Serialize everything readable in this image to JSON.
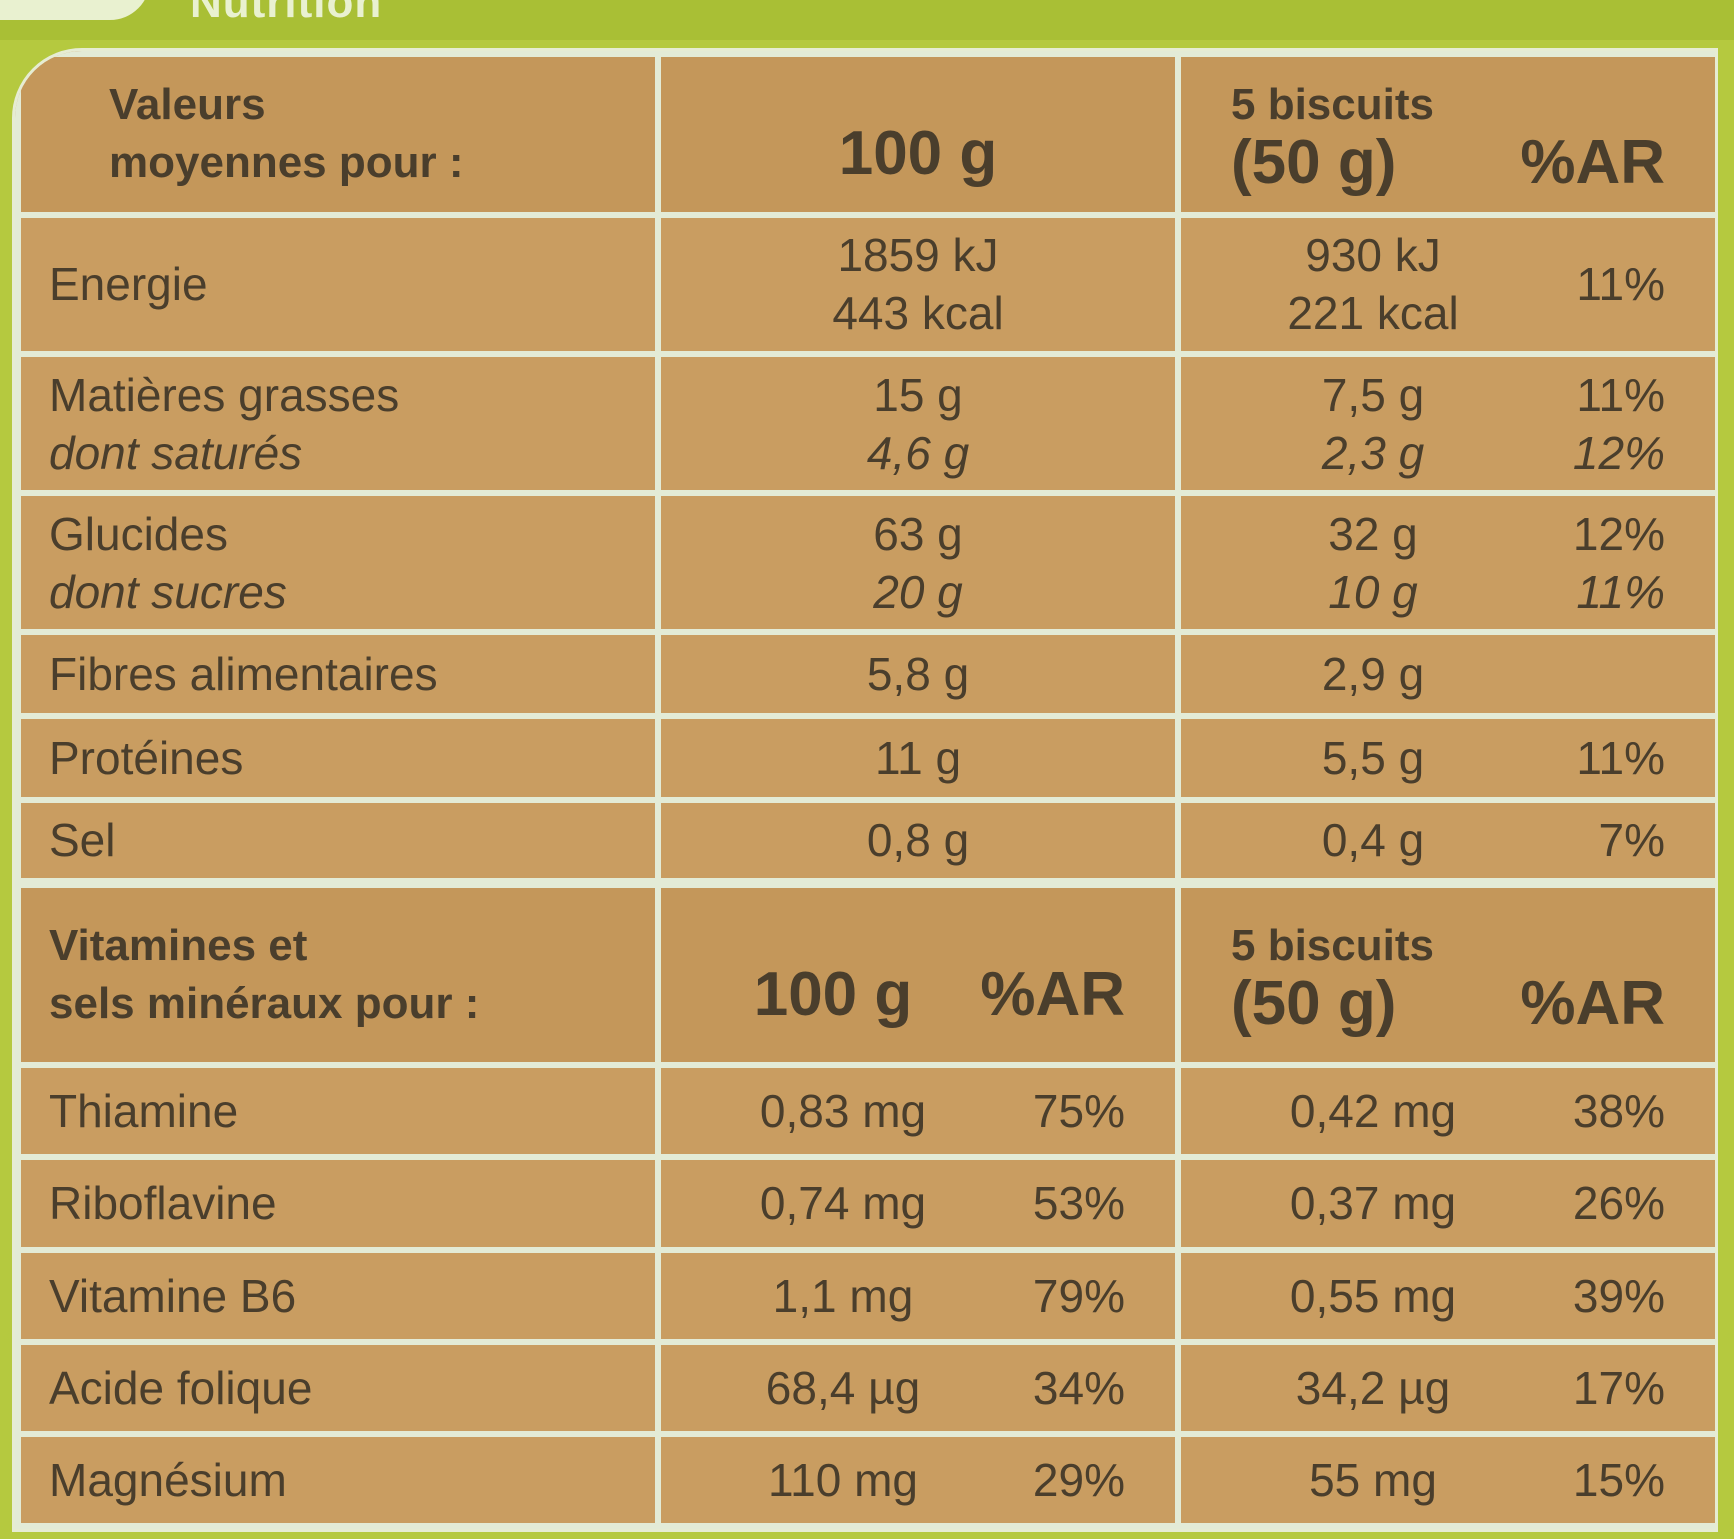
{
  "top_title": "Nutrition",
  "table1": {
    "header": {
      "label_line1": "Valeurs",
      "label_line2": "moyennes pour :",
      "col1": "100 g",
      "col2_line1": "5 biscuits",
      "col2_line2": "(50 g)",
      "col3": "%AR"
    },
    "rows": [
      {
        "label": "Energie",
        "sub": "",
        "v100": "1859 kJ",
        "v100b": "443 kcal",
        "v50": "930 kJ",
        "v50b": "221 kcal",
        "ar": "11%",
        "arb": ""
      },
      {
        "label": "Matières grasses",
        "sub": "dont saturés",
        "v100": "15 g",
        "v100b": "4,6 g",
        "v50": "7,5 g",
        "v50b": "2,3 g",
        "ar": "11%",
        "arb": "12%"
      },
      {
        "label": "Glucides",
        "sub": "dont sucres",
        "v100": "63 g",
        "v100b": "20 g",
        "v50": "32 g",
        "v50b": "10 g",
        "ar": "12%",
        "arb": "11%"
      },
      {
        "label": "Fibres alimentaires",
        "v100": "5,8 g",
        "v50": "2,9 g",
        "ar": ""
      },
      {
        "label": "Protéines",
        "v100": "11 g",
        "v50": "5,5 g",
        "ar": "11%"
      },
      {
        "label": "Sel",
        "v100": "0,8 g",
        "v50": "0,4 g",
        "ar": "7%"
      }
    ]
  },
  "table2": {
    "header": {
      "label_line1": "Vitamines et",
      "label_line2": "sels minéraux pour :",
      "col1": "100 g",
      "col1_ar": "%AR",
      "col2_line1": "5 biscuits",
      "col2_line2": "(50 g)",
      "col2_ar": "%AR"
    },
    "rows": [
      {
        "label": "Thiamine",
        "v100": "0,83 mg",
        "ar100": "75%",
        "v50": "0,42 mg",
        "ar50": "38%"
      },
      {
        "label": "Riboflavine",
        "v100": "0,74 mg",
        "ar100": "53%",
        "v50": "0,37 mg",
        "ar50": "26%"
      },
      {
        "label": "Vitamine B6",
        "v100": "1,1 mg",
        "ar100": "79%",
        "v50": "0,55 mg",
        "ar50": "39%"
      },
      {
        "label": "Acide folique",
        "v100": "68,4 µg",
        "ar100": "34%",
        "v50": "34,2 µg",
        "ar50": "17%"
      },
      {
        "label": "Magnésium",
        "v100": "110 mg",
        "ar100": "29%",
        "v50": "55 mg",
        "ar50": "15%"
      }
    ]
  }
}
